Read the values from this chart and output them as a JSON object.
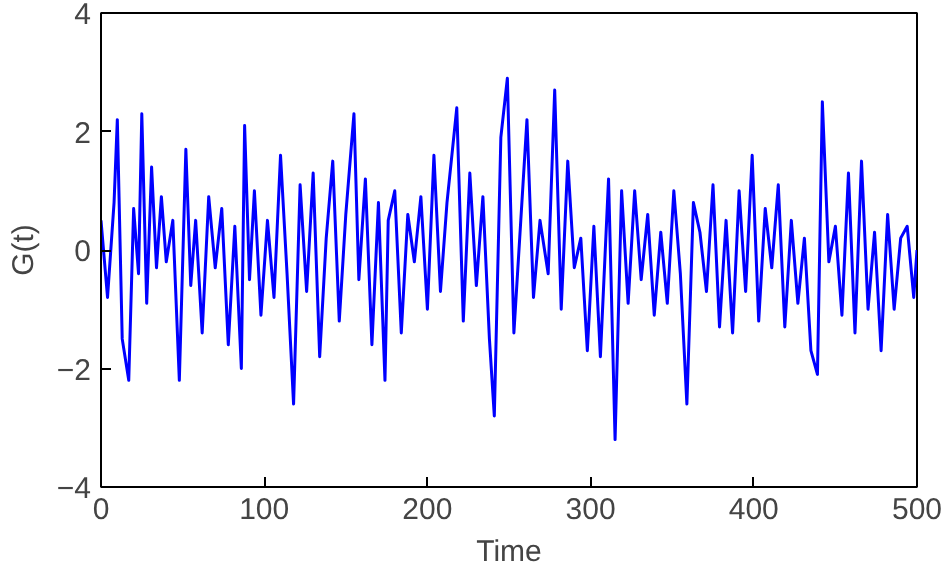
{
  "chart_data": {
    "type": "line",
    "xlabel": "Time",
    "ylabel": "G(t)",
    "xlim": [
      0,
      500
    ],
    "ylim": [
      -4,
      4
    ],
    "xticks": [
      0,
      100,
      200,
      300,
      400,
      500
    ],
    "yticks": [
      -4,
      -2,
      0,
      2,
      4
    ],
    "grid": false,
    "series": [
      {
        "color": "#0000ff",
        "x": [
          0,
          4,
          8,
          10,
          13,
          17,
          20,
          23,
          25,
          28,
          31,
          34,
          37,
          40,
          44,
          48,
          52,
          55,
          58,
          62,
          66,
          70,
          74,
          78,
          82,
          86,
          88,
          91,
          94,
          98,
          102,
          106,
          110,
          114,
          118,
          122,
          126,
          130,
          134,
          138,
          142,
          146,
          150,
          155,
          158,
          162,
          166,
          170,
          174,
          176,
          180,
          184,
          188,
          192,
          196,
          200,
          204,
          208,
          212,
          218,
          222,
          226,
          230,
          234,
          238,
          241,
          245,
          249,
          253,
          257,
          261,
          265,
          269,
          274,
          278,
          282,
          286,
          290,
          294,
          298,
          302,
          306,
          311,
          315,
          319,
          323,
          327,
          331,
          335,
          339,
          343,
          347,
          351,
          355,
          359,
          363,
          367,
          371,
          375,
          379,
          383,
          387,
          391,
          395,
          399,
          403,
          407,
          411,
          415,
          419,
          423,
          427,
          431,
          435,
          439,
          442,
          446,
          450,
          454,
          458,
          462,
          466,
          470,
          474,
          478,
          482,
          486,
          490,
          494,
          498,
          500
        ],
        "values": [
          0.5,
          -0.8,
          0.8,
          2.2,
          -1.5,
          -2.2,
          0.7,
          -0.4,
          2.3,
          -0.9,
          1.4,
          -0.3,
          0.9,
          -0.2,
          0.5,
          -2.2,
          1.7,
          -0.6,
          0.5,
          -1.4,
          0.9,
          -0.3,
          0.7,
          -1.6,
          0.4,
          -2.0,
          2.1,
          -0.5,
          1.0,
          -1.1,
          0.5,
          -0.8,
          1.6,
          -0.4,
          -2.6,
          1.1,
          -0.7,
          1.3,
          -1.8,
          0.2,
          1.5,
          -1.2,
          0.6,
          2.3,
          -0.5,
          1.2,
          -1.6,
          0.8,
          -2.2,
          0.5,
          1.0,
          -1.4,
          0.6,
          -0.2,
          0.9,
          -1.0,
          1.6,
          -0.7,
          0.8,
          2.4,
          -1.2,
          1.3,
          -0.6,
          0.9,
          -1.5,
          -2.8,
          1.9,
          2.9,
          -1.4,
          0.4,
          2.2,
          -0.8,
          0.5,
          -0.4,
          2.7,
          -1.0,
          1.5,
          -0.3,
          0.2,
          -1.7,
          0.4,
          -1.8,
          1.2,
          -3.2,
          1.0,
          -0.9,
          1.0,
          -0.5,
          0.6,
          -1.1,
          0.3,
          -0.9,
          1.0,
          -0.4,
          -2.6,
          0.8,
          0.3,
          -0.7,
          1.1,
          -1.3,
          0.5,
          -1.4,
          1.0,
          -0.7,
          1.6,
          -1.2,
          0.7,
          -0.3,
          1.1,
          -1.3,
          0.5,
          -0.9,
          0.2,
          -1.7,
          -2.1,
          2.5,
          -0.2,
          0.4,
          -1.1,
          1.3,
          -1.4,
          1.5,
          -1.0,
          0.3,
          -1.7,
          0.6,
          -1.0,
          0.2,
          0.4,
          -0.8,
          0.0
        ]
      }
    ]
  }
}
